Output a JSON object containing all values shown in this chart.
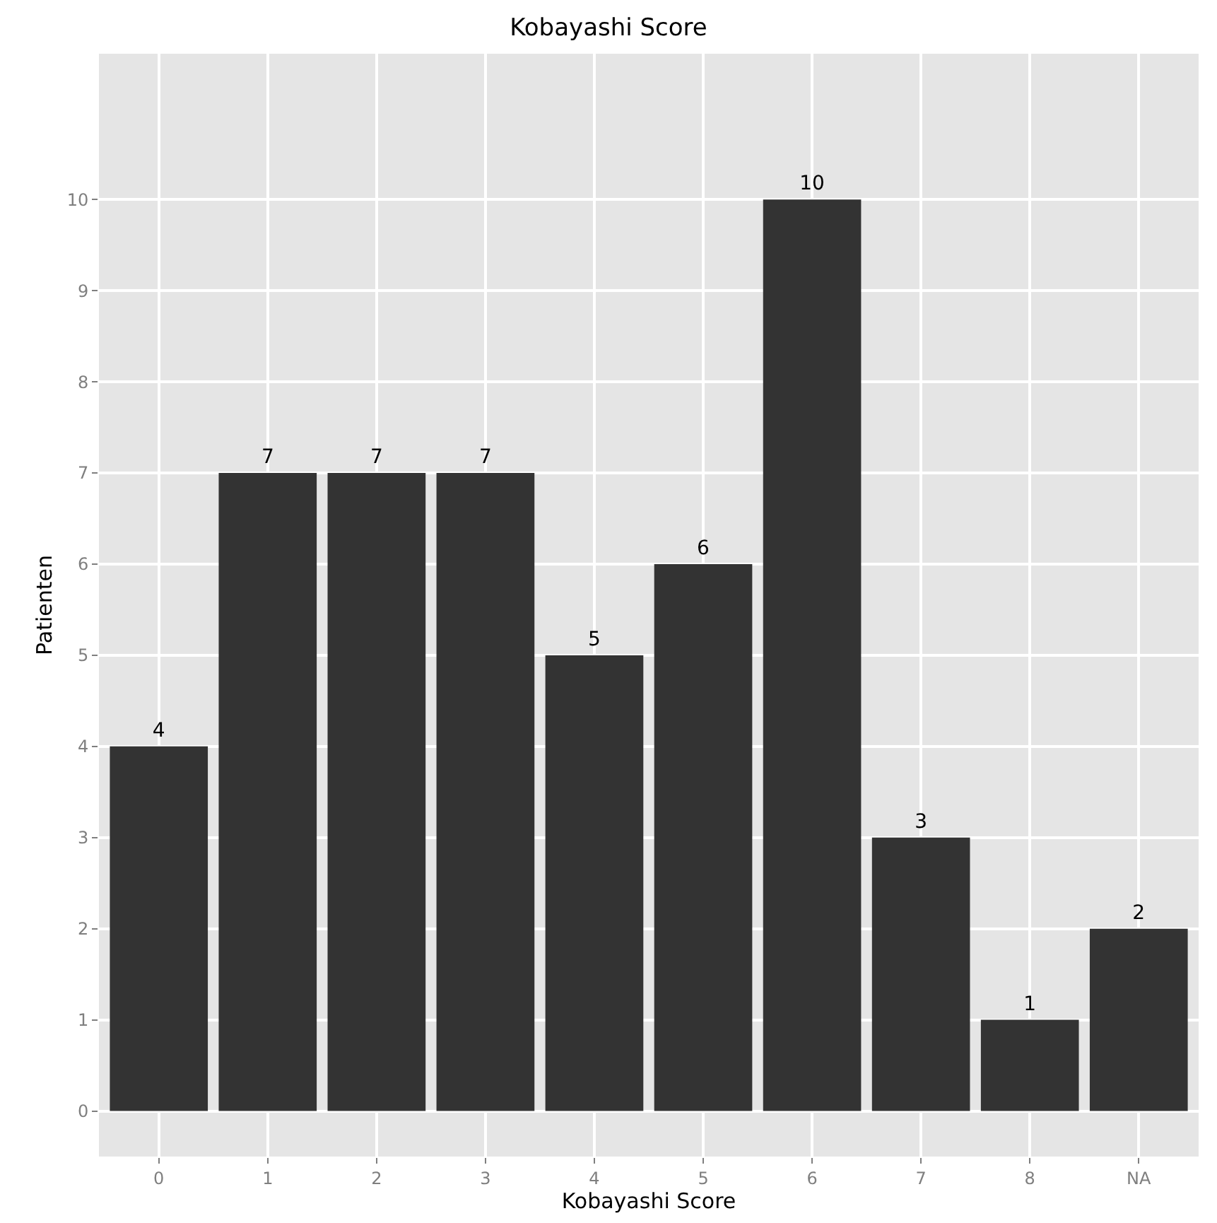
{
  "chart_data": {
    "type": "bar",
    "title": "Kobayashi Score",
    "xlabel": "Kobayashi Score",
    "ylabel": "Patienten",
    "categories": [
      "0",
      "1",
      "2",
      "3",
      "4",
      "5",
      "6",
      "7",
      "8",
      "NA"
    ],
    "values": [
      4,
      7,
      7,
      7,
      5,
      6,
      10,
      3,
      1,
      2
    ],
    "color": "#333333",
    "ylim": [
      -0.5,
      11.6
    ],
    "yticks": [
      0,
      1,
      2,
      3,
      4,
      5,
      6,
      7,
      8,
      9,
      10
    ],
    "grid": true,
    "data_labels": true
  }
}
